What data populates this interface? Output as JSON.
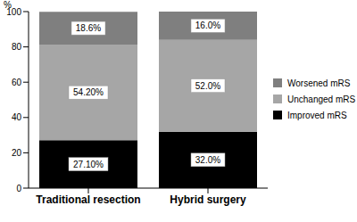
{
  "chart_data": {
    "type": "bar",
    "stacked": true,
    "data_labels": true,
    "grid": false,
    "legend": "right",
    "y_label": "%",
    "categories": [
      "Traditional resection",
      "Hybrid surgery"
    ],
    "ylim": [
      0,
      100
    ],
    "yticks": [
      0,
      20,
      40,
      60,
      80,
      100
    ],
    "series": [
      {
        "name": "Improved mRS",
        "color": "#000000",
        "values": [
          27.1,
          32.0
        ],
        "value_labels": [
          "27.10%",
          "32.0%"
        ]
      },
      {
        "name": "Unchanged mRS",
        "color": "#a6a6a6",
        "values": [
          54.2,
          52.0
        ],
        "value_labels": [
          "54.20%",
          "52.0%"
        ]
      },
      {
        "name": "Worsened mRS",
        "color": "#7f7f7f",
        "values": [
          18.6,
          16.0
        ],
        "value_labels": [
          "18.6%",
          "16.0%"
        ]
      }
    ]
  }
}
